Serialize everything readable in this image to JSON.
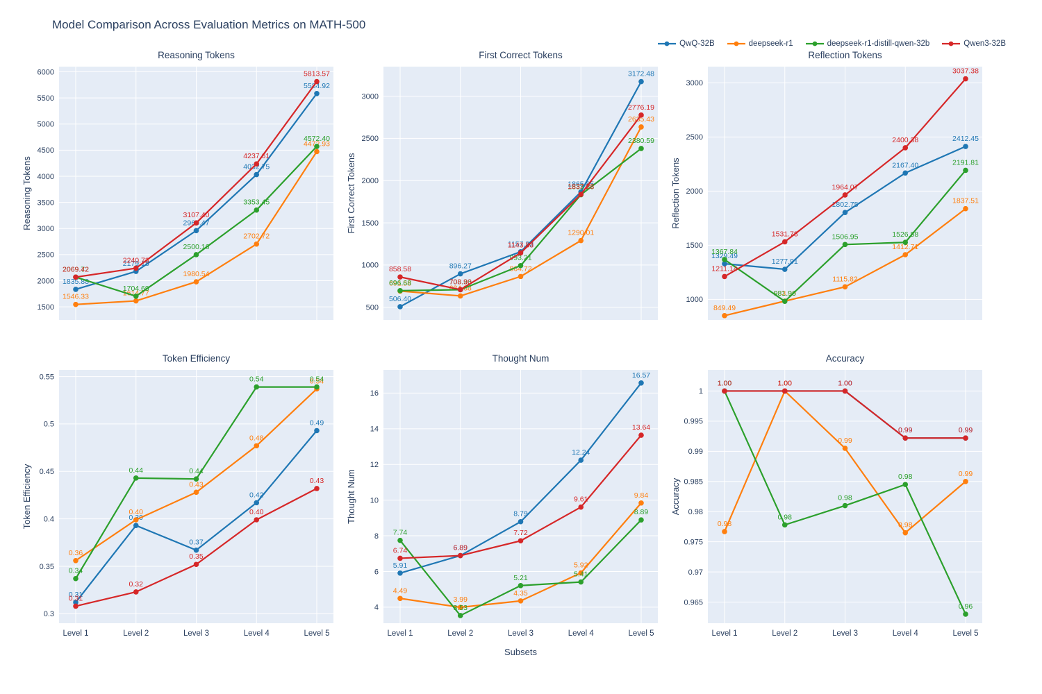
{
  "page": {
    "title": "Model Comparison Across Evaluation Metrics on MATH-500"
  },
  "colors": {
    "text": "#2a3f5f",
    "plot_bg": "#e5ecf6",
    "grid": "#ffffff",
    "blue": "#1f77b4",
    "orange": "#ff7f0e",
    "green": "#2ca02c",
    "red": "#d62728"
  },
  "models": [
    {
      "name": "QwQ-32B",
      "color": "#1f77b4"
    },
    {
      "name": "deepseek-r1",
      "color": "#ff7f0e"
    },
    {
      "name": "deepseek-r1-distill-qwen-32b",
      "color": "#2ca02c"
    },
    {
      "name": "Qwen3-32B",
      "color": "#d62728"
    }
  ],
  "x_axis": {
    "label": "Subsets",
    "categories": [
      "Level 1",
      "Level 2",
      "Level 3",
      "Level 4",
      "Level 5"
    ]
  },
  "chart_data": [
    {
      "type": "line",
      "title": "Reasoning Tokens",
      "ylabel": "Reasoning Tokens",
      "categories": [
        "Level 1",
        "Level 2",
        "Level 3",
        "Level 4",
        "Level 5"
      ],
      "yticks": [
        1500,
        2000,
        2500,
        3000,
        3500,
        4000,
        4500,
        5000,
        5500,
        6000
      ],
      "ytick_labels": [
        "1500",
        "2000",
        "2500",
        "3000",
        "3500",
        "4000",
        "4500",
        "5000",
        "5500",
        "6000"
      ],
      "ylim": [
        1250,
        6100
      ],
      "show_x_labels": false,
      "series": [
        {
          "name": "QwQ-32B",
          "values": [
            1835.88,
            2179.18,
            2960.47,
            4032.75,
            5584.92
          ],
          "labels": [
            "1835.88",
            "2179.18",
            "2960.47",
            "4032.75",
            "5584.92"
          ]
        },
        {
          "name": "deepseek-r1",
          "values": [
            1546.33,
            1614.77,
            1980.54,
            2702.72,
            4472.93
          ],
          "labels": [
            "1546.33",
            "1614.77",
            "1980.54",
            "2702.72",
            "4472.93"
          ]
        },
        {
          "name": "deepseek-r1-distill-qwen-32b",
          "values": [
            2069.72,
            1704.69,
            2500.16,
            3353.45,
            4572.4
          ],
          "labels": [
            "2069.72",
            "1704.69",
            "2500.16",
            "3353.45",
            "4572.40"
          ]
        },
        {
          "name": "Qwen3-32B",
          "values": [
            2069.42,
            2240.73,
            3107.4,
            4237.61,
            5813.57
          ],
          "labels": [
            "2069.42",
            "2240.73",
            "3107.40",
            "4237.61",
            "5813.57"
          ]
        }
      ]
    },
    {
      "type": "line",
      "title": "First Correct Tokens",
      "ylabel": "First Correct Tokens",
      "categories": [
        "Level 1",
        "Level 2",
        "Level 3",
        "Level 4",
        "Level 5"
      ],
      "yticks": [
        500,
        1000,
        1500,
        2000,
        2500,
        3000
      ],
      "ytick_labels": [
        "500",
        "1000",
        "1500",
        "2000",
        "2500",
        "3000"
      ],
      "ylim": [
        350,
        3350
      ],
      "show_x_labels": false,
      "series": [
        {
          "name": "QwQ-32B",
          "values": [
            506.4,
            896.27,
            1157.33,
            1865.85,
            3172.48
          ],
          "labels": [
            "506.40",
            "896.27",
            "1157.33",
            "1865.85",
            "3172.48"
          ]
        },
        {
          "name": "deepseek-r1",
          "values": [
            691.58,
            634.38,
            864.72,
            1290.01,
            2635.43
          ],
          "labels": [
            "691.58",
            "634.38",
            "864.72",
            "1290.01",
            "2635.43"
          ]
        },
        {
          "name": "deepseek-r1-distill-qwen-32b",
          "values": [
            696.68,
            708.36,
            993.21,
            1833.23,
            2380.59
          ],
          "labels": [
            "696.68",
            "708.36",
            "993.21",
            "1833.23",
            "2380.59"
          ]
        },
        {
          "name": "Qwen3-32B",
          "values": [
            858.58,
            708.9,
            1143.83,
            1837.28,
            2776.19
          ],
          "labels": [
            "858.58",
            "708.90",
            "1143.83",
            "1837.28",
            "2776.19"
          ]
        }
      ]
    },
    {
      "type": "line",
      "title": "Reflection Tokens",
      "ylabel": "Reflection Tokens",
      "categories": [
        "Level 1",
        "Level 2",
        "Level 3",
        "Level 4",
        "Level 5"
      ],
      "yticks": [
        1000,
        1500,
        2000,
        2500,
        3000
      ],
      "ytick_labels": [
        "1000",
        "1500",
        "2000",
        "2500",
        "3000"
      ],
      "ylim": [
        810,
        3150
      ],
      "show_x_labels": false,
      "series": [
        {
          "name": "QwQ-32B",
          "values": [
            1329.49,
            1277.91,
            1802.75,
            2167.4,
            2412.45
          ],
          "labels": [
            "1329.49",
            "1277.91",
            "1802.75",
            "2167.40",
            "2412.45"
          ]
        },
        {
          "name": "deepseek-r1",
          "values": [
            849.49,
            983.9,
            1115.82,
            1412.71,
            1837.51
          ],
          "labels": [
            "849.49",
            "983.90",
            "1115.82",
            "1412.71",
            "1837.51"
          ]
        },
        {
          "name": "deepseek-r1-distill-qwen-32b",
          "values": [
            1367.84,
            981.96,
            1506.95,
            1526.58,
            2191.81
          ],
          "labels": [
            "1367.84",
            "981.96",
            "1506.95",
            "1526.58",
            "2191.81"
          ]
        },
        {
          "name": "Qwen3-32B",
          "values": [
            1211.14,
            1531.78,
            1964.07,
            2400.38,
            3037.38
          ],
          "labels": [
            "1211.14",
            "1531.78",
            "1964.07",
            "2400.38",
            "3037.38"
          ]
        }
      ]
    },
    {
      "type": "line",
      "title": "Token Efficiency",
      "ylabel": "Token Efficiency",
      "categories": [
        "Level 1",
        "Level 2",
        "Level 3",
        "Level 4",
        "Level 5"
      ],
      "yticks": [
        0.3,
        0.35,
        0.4,
        0.45,
        0.5,
        0.55
      ],
      "ytick_labels": [
        "0.3",
        "0.35",
        "0.4",
        "0.45",
        "0.5",
        "0.55"
      ],
      "ylim": [
        0.29,
        0.557
      ],
      "show_x_labels": true,
      "series": [
        {
          "name": "QwQ-32B",
          "values": [
            0.312,
            0.393,
            0.367,
            0.417,
            0.493
          ],
          "labels": [
            "0.31",
            "0.39",
            "0.37",
            "0.42",
            "0.49"
          ]
        },
        {
          "name": "deepseek-r1",
          "values": [
            0.356,
            0.399,
            0.428,
            0.477,
            0.537
          ],
          "labels": [
            "0.36",
            "0.40",
            "0.43",
            "0.48",
            "0.54"
          ]
        },
        {
          "name": "deepseek-r1-distill-qwen-32b",
          "values": [
            0.337,
            0.443,
            0.442,
            0.539,
            0.539
          ],
          "labels": [
            "0.34",
            "0.44",
            "0.44",
            "0.54",
            "0.54"
          ]
        },
        {
          "name": "Qwen3-32B",
          "values": [
            0.308,
            0.323,
            0.352,
            0.399,
            0.432
          ],
          "labels": [
            "0.31",
            "0.32",
            "0.35",
            "0.40",
            "0.43"
          ]
        }
      ]
    },
    {
      "type": "line",
      "title": "Thought Num",
      "ylabel": "Thought Num",
      "xlabel": "Subsets",
      "categories": [
        "Level 1",
        "Level 2",
        "Level 3",
        "Level 4",
        "Level 5"
      ],
      "yticks": [
        4,
        6,
        8,
        10,
        12,
        14,
        16
      ],
      "ytick_labels": [
        "4",
        "6",
        "8",
        "10",
        "12",
        "14",
        "16"
      ],
      "ylim": [
        3.1,
        17.3
      ],
      "show_x_labels": true,
      "series": [
        {
          "name": "QwQ-32B",
          "values": [
            5.91,
            6.89,
            8.79,
            12.24,
            16.57
          ],
          "labels": [
            "5.91",
            "6.89",
            "8.79",
            "12.24",
            "16.57"
          ]
        },
        {
          "name": "deepseek-r1",
          "values": [
            4.49,
            3.99,
            4.35,
            5.92,
            9.84
          ],
          "labels": [
            "4.49",
            "3.99",
            "4.35",
            "5.92",
            "9.84"
          ]
        },
        {
          "name": "deepseek-r1-distill-qwen-32b",
          "values": [
            7.74,
            3.53,
            5.21,
            5.41,
            8.89
          ],
          "labels": [
            "7.74",
            "3.53",
            "5.21",
            "5.41",
            "8.89"
          ]
        },
        {
          "name": "Qwen3-32B",
          "values": [
            6.74,
            6.89,
            7.72,
            9.61,
            13.64
          ],
          "labels": [
            "6.74",
            "6.89",
            "7.72",
            "9.61",
            "13.64"
          ]
        }
      ]
    },
    {
      "type": "line",
      "title": "Accuracy",
      "ylabel": "Accuracy",
      "categories": [
        "Level 1",
        "Level 2",
        "Level 3",
        "Level 4",
        "Level 5"
      ],
      "yticks": [
        0.965,
        0.97,
        0.975,
        0.98,
        0.985,
        0.99,
        0.995,
        1
      ],
      "ytick_labels": [
        "0.965",
        "0.97",
        "0.975",
        "0.98",
        "0.985",
        "0.99",
        "0.995",
        "1"
      ],
      "ylim": [
        0.9615,
        1.0035
      ],
      "show_x_labels": true,
      "series": [
        {
          "name": "QwQ-32B",
          "values": [
            1.0,
            1.0,
            1.0,
            0.9922,
            0.9922
          ],
          "labels": [
            "1.00",
            "1.00",
            "1.00",
            "0.99",
            "0.99"
          ]
        },
        {
          "name": "deepseek-r1",
          "values": [
            0.9767,
            1.0,
            0.9905,
            0.9765,
            0.985
          ],
          "labels": [
            "0.98",
            "1.00",
            "0.99",
            "0.98",
            "0.99"
          ]
        },
        {
          "name": "deepseek-r1-distill-qwen-32b",
          "values": [
            1.0,
            0.9778,
            0.981,
            0.9845,
            0.963
          ],
          "labels": [
            "1.00",
            "0.98",
            "0.98",
            "0.98",
            "0.96"
          ]
        },
        {
          "name": "Qwen3-32B",
          "values": [
            1.0,
            1.0,
            1.0,
            0.9922,
            0.9922
          ],
          "labels": [
            "1.00",
            "1.00",
            "1.00",
            "0.99",
            "0.99"
          ]
        }
      ]
    }
  ]
}
